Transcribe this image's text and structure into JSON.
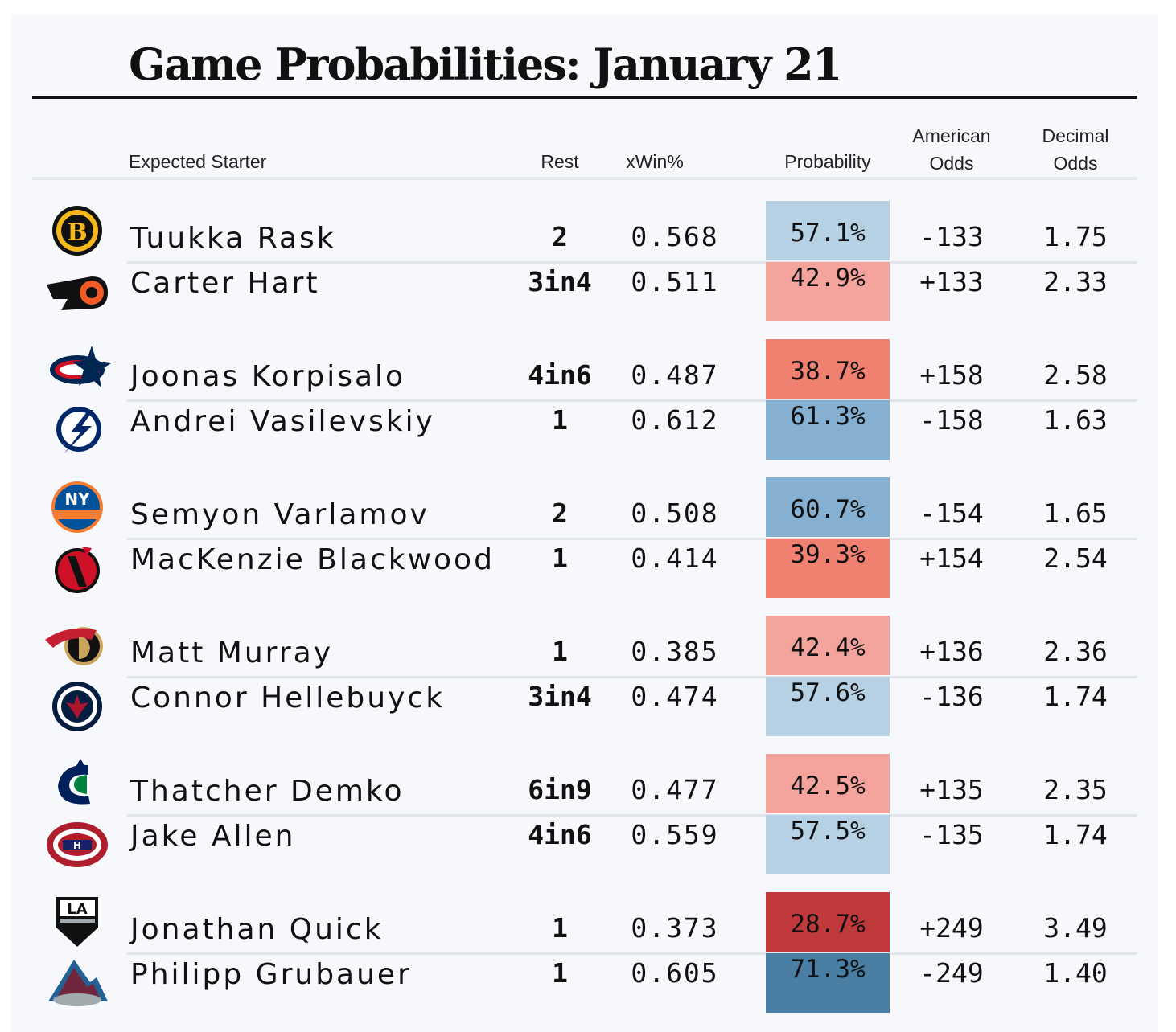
{
  "title": "Game Probabilities: January 21",
  "headers": {
    "starter": "Expected Starter",
    "rest": "Rest",
    "xwin": "xWin%",
    "probability": "Probability",
    "american_1": "American",
    "american_2": "Odds",
    "decimal_1": "Decimal",
    "decimal_2": "Odds"
  },
  "chart_data": {
    "type": "table",
    "columns": [
      "Expected Starter",
      "Rest",
      "xWin%",
      "Probability",
      "American Odds",
      "Decimal Odds"
    ],
    "games": [
      {
        "teams": [
          {
            "team_icon": "bruins-logo",
            "starter": "Tuukka Rask",
            "rest": "2",
            "xwin": "0.568",
            "probability": "57.1%",
            "prob_value": 57.1,
            "american": "-133",
            "decimal": "1.75"
          },
          {
            "team_icon": "flyers-logo",
            "starter": "Carter Hart",
            "rest": "3in4",
            "xwin": "0.511",
            "probability": "42.9%",
            "prob_value": 42.9,
            "american": "+133",
            "decimal": "2.33"
          }
        ]
      },
      {
        "teams": [
          {
            "team_icon": "blue-jackets-logo",
            "starter": "Joonas Korpisalo",
            "rest": "4in6",
            "xwin": "0.487",
            "probability": "38.7%",
            "prob_value": 38.7,
            "american": "+158",
            "decimal": "2.58"
          },
          {
            "team_icon": "lightning-logo",
            "starter": "Andrei Vasilevskiy",
            "rest": "1",
            "xwin": "0.612",
            "probability": "61.3%",
            "prob_value": 61.3,
            "american": "-158",
            "decimal": "1.63"
          }
        ]
      },
      {
        "teams": [
          {
            "team_icon": "islanders-logo",
            "starter": "Semyon Varlamov",
            "rest": "2",
            "xwin": "0.508",
            "probability": "60.7%",
            "prob_value": 60.7,
            "american": "-154",
            "decimal": "1.65"
          },
          {
            "team_icon": "devils-logo",
            "starter": "MacKenzie Blackwood",
            "rest": "1",
            "xwin": "0.414",
            "probability": "39.3%",
            "prob_value": 39.3,
            "american": "+154",
            "decimal": "2.54"
          }
        ]
      },
      {
        "teams": [
          {
            "team_icon": "senators-logo",
            "starter": "Matt Murray",
            "rest": "1",
            "xwin": "0.385",
            "probability": "42.4%",
            "prob_value": 42.4,
            "american": "+136",
            "decimal": "2.36"
          },
          {
            "team_icon": "jets-logo",
            "starter": "Connor Hellebuyck",
            "rest": "3in4",
            "xwin": "0.474",
            "probability": "57.6%",
            "prob_value": 57.6,
            "american": "-136",
            "decimal": "1.74"
          }
        ]
      },
      {
        "teams": [
          {
            "team_icon": "canucks-logo",
            "starter": "Thatcher Demko",
            "rest": "6in9",
            "xwin": "0.477",
            "probability": "42.5%",
            "prob_value": 42.5,
            "american": "+135",
            "decimal": "2.35"
          },
          {
            "team_icon": "canadiens-logo",
            "starter": "Jake Allen",
            "rest": "4in6",
            "xwin": "0.559",
            "probability": "57.5%",
            "prob_value": 57.5,
            "american": "-135",
            "decimal": "1.74"
          }
        ]
      },
      {
        "teams": [
          {
            "team_icon": "kings-logo",
            "starter": "Jonathan Quick",
            "rest": "1",
            "xwin": "0.373",
            "probability": "28.7%",
            "prob_value": 28.7,
            "american": "+249",
            "decimal": "3.49"
          },
          {
            "team_icon": "avalanche-logo",
            "starter": "Philipp Grubauer",
            "rest": "1",
            "xwin": "0.605",
            "probability": "71.3%",
            "prob_value": 71.3,
            "american": "-249",
            "decimal": "1.40"
          }
        ]
      }
    ],
    "color_scale": {
      "low": "#c0393b",
      "mid_low": "#f08070",
      "light_low": "#f4a49c",
      "light_high": "#b6d1e4",
      "mid_high": "#85b0d2",
      "high": "#4a7ea3"
    }
  }
}
